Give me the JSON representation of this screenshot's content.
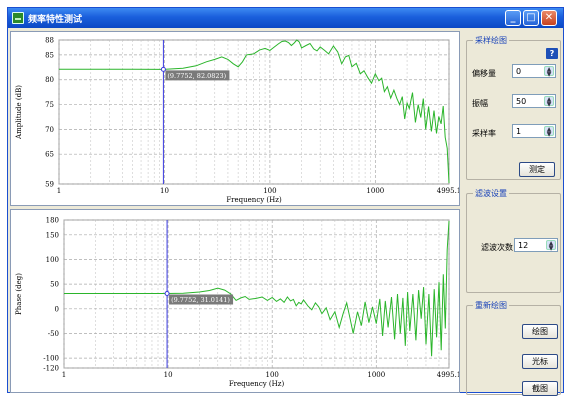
{
  "window": {
    "title": "频率特性测试",
    "controls": [
      "minimize",
      "maximize",
      "close"
    ]
  },
  "chart_data": [
    {
      "type": "line",
      "xlabel": "Frequency (Hz)",
      "ylabel": "Amplitude (dB)",
      "xscale": "log",
      "xlim": [
        1,
        4995.1
      ],
      "ylim": [
        59,
        88
      ],
      "xticks": [
        "1",
        "10",
        "100",
        "1000",
        "4995.1"
      ],
      "yticks": [
        "59",
        "65",
        "70",
        "75",
        "80",
        "85",
        "88"
      ],
      "grid": true,
      "cursor": {
        "x": 9.7752,
        "y": 82.0823,
        "label": "(9.7752, 82.0823)"
      },
      "series": [
        {
          "color": "#2bb52b",
          "points": [
            [
              1,
              82.1
            ],
            [
              2,
              82.1
            ],
            [
              5,
              82.1
            ],
            [
              9.78,
              82.08
            ],
            [
              15,
              82.3
            ],
            [
              20,
              82.8
            ],
            [
              25,
              83.6
            ],
            [
              30,
              84.1
            ],
            [
              35,
              84.6
            ],
            [
              40,
              84.1
            ],
            [
              45,
              83.2
            ],
            [
              50,
              82.6
            ],
            [
              55,
              83.6
            ],
            [
              60,
              85.0
            ],
            [
              70,
              85.2
            ],
            [
              80,
              86.0
            ],
            [
              90,
              86.3
            ],
            [
              100,
              85.9
            ],
            [
              110,
              86.6
            ],
            [
              120,
              87.2
            ],
            [
              130,
              87.7
            ],
            [
              140,
              87.8
            ],
            [
              150,
              87.5
            ],
            [
              160,
              86.9
            ],
            [
              170,
              87.4
            ],
            [
              180,
              88.0
            ],
            [
              190,
              87.6
            ],
            [
              200,
              86.4
            ],
            [
              220,
              86.9
            ],
            [
              240,
              87.3
            ],
            [
              260,
              86.2
            ],
            [
              280,
              85.8
            ],
            [
              300,
              86.6
            ],
            [
              330,
              85.9
            ],
            [
              360,
              85.2
            ],
            [
              400,
              86.8
            ],
            [
              440,
              85.6
            ],
            [
              480,
              83.2
            ],
            [
              520,
              84.6
            ],
            [
              560,
              84.9
            ],
            [
              600,
              82.6
            ],
            [
              660,
              83.3
            ],
            [
              720,
              81.2
            ],
            [
              780,
              81.8
            ],
            [
              850,
              80.4
            ],
            [
              920,
              79.3
            ],
            [
              1000,
              81.2
            ],
            [
              1080,
              79.8
            ],
            [
              1150,
              80.3
            ],
            [
              1220,
              77.6
            ],
            [
              1300,
              78.6
            ],
            [
              1400,
              76.3
            ],
            [
              1500,
              77.9
            ],
            [
              1600,
              76.2
            ],
            [
              1700,
              75.0
            ],
            [
              1800,
              76.6
            ],
            [
              1900,
              72.1
            ],
            [
              2000,
              75.3
            ],
            [
              2100,
              74.2
            ],
            [
              2250,
              77.4
            ],
            [
              2400,
              71.4
            ],
            [
              2550,
              75.0
            ],
            [
              2700,
              72.4
            ],
            [
              2850,
              76.2
            ],
            [
              3000,
              70.0
            ],
            [
              3200,
              74.6
            ],
            [
              3400,
              69.6
            ],
            [
              3600,
              73.8
            ],
            [
              3800,
              69.2
            ],
            [
              4000,
              72.6
            ],
            [
              4200,
              71.1
            ],
            [
              4400,
              74.7
            ],
            [
              4600,
              68.4
            ],
            [
              4800,
              66.2
            ],
            [
              4995.1,
              59.2
            ]
          ]
        }
      ]
    },
    {
      "type": "line",
      "xlabel": "Frequency (Hz)",
      "ylabel": "Phase (deg)",
      "xscale": "log",
      "xlim": [
        1,
        4995.1
      ],
      "ylim": [
        -120,
        180
      ],
      "xticks": [
        "1",
        "10",
        "100",
        "1000",
        "4995.1"
      ],
      "yticks": [
        "-120",
        "-100",
        "-50",
        "0",
        "50",
        "100",
        "150",
        "180"
      ],
      "grid": true,
      "cursor": {
        "x": 9.7752,
        "y": 31.0141,
        "label": "(9.7752, 31.0141)"
      },
      "series": [
        {
          "color": "#2bb52b",
          "points": [
            [
              1,
              31
            ],
            [
              3,
              31
            ],
            [
              6,
              31
            ],
            [
              9.78,
              31.01
            ],
            [
              14,
              31.5
            ],
            [
              20,
              34
            ],
            [
              25,
              37
            ],
            [
              30,
              42
            ],
            [
              35,
              38
            ],
            [
              40,
              30
            ],
            [
              45,
              17
            ],
            [
              50,
              22
            ],
            [
              55,
              25
            ],
            [
              60,
              19
            ],
            [
              70,
              21
            ],
            [
              80,
              24
            ],
            [
              90,
              17
            ],
            [
              100,
              23
            ],
            [
              110,
              15
            ],
            [
              120,
              20
            ],
            [
              130,
              13
            ],
            [
              140,
              24
            ],
            [
              150,
              16
            ],
            [
              160,
              19
            ],
            [
              170,
              6
            ],
            [
              180,
              13
            ],
            [
              190,
              10
            ],
            [
              200,
              18
            ],
            [
              220,
              6
            ],
            [
              240,
              -2
            ],
            [
              260,
              12
            ],
            [
              280,
              4
            ],
            [
              300,
              -10
            ],
            [
              330,
              2
            ],
            [
              360,
              -22
            ],
            [
              400,
              -6
            ],
            [
              440,
              -38
            ],
            [
              480,
              -10
            ],
            [
              520,
              12
            ],
            [
              560,
              -20
            ],
            [
              600,
              -50
            ],
            [
              660,
              -6
            ],
            [
              720,
              -34
            ],
            [
              780,
              14
            ],
            [
              850,
              -28
            ],
            [
              920,
              4
            ],
            [
              1000,
              -30
            ],
            [
              1080,
              20
            ],
            [
              1150,
              -55
            ],
            [
              1220,
              16
            ],
            [
              1300,
              -38
            ],
            [
              1400,
              24
            ],
            [
              1500,
              -62
            ],
            [
              1600,
              30
            ],
            [
              1700,
              -50
            ],
            [
              1800,
              22
            ],
            [
              1900,
              -75
            ],
            [
              2000,
              34
            ],
            [
              2100,
              -45
            ],
            [
              2250,
              30
            ],
            [
              2400,
              -64
            ],
            [
              2550,
              38
            ],
            [
              2700,
              -20
            ],
            [
              2850,
              44
            ],
            [
              3000,
              -72
            ],
            [
              3200,
              30
            ],
            [
              3400,
              -96
            ],
            [
              3600,
              40
            ],
            [
              3800,
              -58
            ],
            [
              4000,
              54
            ],
            [
              4200,
              -84
            ],
            [
              4400,
              70
            ],
            [
              4600,
              -40
            ],
            [
              4800,
              120
            ],
            [
              4995.1,
              178
            ]
          ]
        }
      ]
    }
  ],
  "sampling": {
    "group_title": "采样绘图",
    "help_label": "?",
    "fields": [
      {
        "label": "偏移量",
        "value": "0"
      },
      {
        "label": "振幅",
        "value": "50"
      },
      {
        "label": "采样率",
        "value": "1"
      }
    ],
    "measure_label": "测定"
  },
  "filter": {
    "group_title": "滤波设置",
    "order_label": "滤波次数",
    "order_value": "12"
  },
  "redraw": {
    "group_title": "重新绘图",
    "plot_label": "绘图",
    "cursor_label": "光标",
    "capture_label": "截图"
  }
}
